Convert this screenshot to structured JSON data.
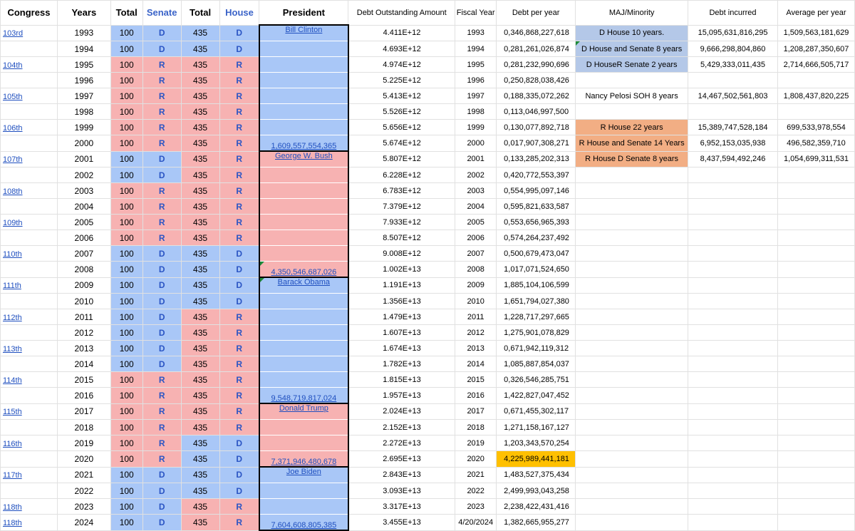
{
  "headers": {
    "congress": "Congress",
    "years": "Years",
    "total1": "Total",
    "senate": "Senate",
    "total2": "Total",
    "house": "House",
    "president": "President",
    "debt_outstanding": "Debt Outstanding Amount",
    "fiscal_year": "Fiscal Year",
    "debt_per_year": "Debt per year",
    "maj_minority": "MAJ/Minority",
    "debt_incurred": "Debt incurred",
    "avg_per_year": "Average per year"
  },
  "colors": {
    "democrat_fill": "#a9c7f7",
    "republican_fill": "#f7b2b2",
    "highlight_yellow": "#ffc000",
    "maj_blue": "#b4c8e8",
    "maj_orange": "#f2ae84"
  },
  "rows": [
    {
      "congress": "103rd",
      "year": "1993",
      "total_senate": "100",
      "senate": "D",
      "total_house": "435",
      "house": "D",
      "president": "Bill Clinton",
      "debt_outstanding": "4.411E+12",
      "fiscal_year": "1993",
      "debt_per_year": "0,346,868,227,618",
      "maj": "D House 10 years.",
      "debt_incurred": "15,095,631,816,295",
      "avg_per_year": "1,509,563,181,629"
    },
    {
      "congress": "",
      "year": "1994",
      "total_senate": "100",
      "senate": "D",
      "total_house": "435",
      "house": "D",
      "president": "",
      "debt_outstanding": "4.693E+12",
      "fiscal_year": "1994",
      "debt_per_year": "0,281,261,026,874",
      "maj": "D House and Senate 8 years",
      "debt_incurred": "9,666,298,804,860",
      "avg_per_year": "1,208,287,350,607"
    },
    {
      "congress": "104th",
      "year": "1995",
      "total_senate": "100",
      "senate": "R",
      "total_house": "435",
      "house": "R",
      "president": "",
      "debt_outstanding": "4.974E+12",
      "fiscal_year": "1995",
      "debt_per_year": "0,281,232,990,696",
      "maj": "D HouseR Senate 2 years",
      "debt_incurred": "5,429,333,011,435",
      "avg_per_year": "2,714,666,505,717"
    },
    {
      "congress": "",
      "year": "1996",
      "total_senate": "100",
      "senate": "R",
      "total_house": "435",
      "house": "R",
      "president": "",
      "debt_outstanding": "5.225E+12",
      "fiscal_year": "1996",
      "debt_per_year": "0,250,828,038,426",
      "maj": "",
      "debt_incurred": "",
      "avg_per_year": ""
    },
    {
      "congress": "105th",
      "year": "1997",
      "total_senate": "100",
      "senate": "R",
      "total_house": "435",
      "house": "R",
      "president": "",
      "debt_outstanding": "5.413E+12",
      "fiscal_year": "1997",
      "debt_per_year": "0,188,335,072,262",
      "maj": "Nancy Pelosi SOH 8 years",
      "debt_incurred": "14,467,502,561,803",
      "avg_per_year": "1,808,437,820,225"
    },
    {
      "congress": "",
      "year": "1998",
      "total_senate": "100",
      "senate": "R",
      "total_house": "435",
      "house": "R",
      "president": "",
      "debt_outstanding": "5.526E+12",
      "fiscal_year": "1998",
      "debt_per_year": "0,113,046,997,500",
      "maj": "",
      "debt_incurred": "",
      "avg_per_year": ""
    },
    {
      "congress": "106th",
      "year": "1999",
      "total_senate": "100",
      "senate": "R",
      "total_house": "435",
      "house": "R",
      "president": "",
      "debt_outstanding": "5.656E+12",
      "fiscal_year": "1999",
      "debt_per_year": "0,130,077,892,718",
      "maj": "R House 22 years",
      "debt_incurred": "15,389,747,528,184",
      "avg_per_year": "699,533,978,554"
    },
    {
      "congress": "",
      "year": "2000",
      "total_senate": "100",
      "senate": "R",
      "total_house": "435",
      "house": "R",
      "president": "1,609,557,554,365",
      "debt_outstanding": "5.674E+12",
      "fiscal_year": "2000",
      "debt_per_year": "0,017,907,308,271",
      "maj": "R House  and Senate 14 Years",
      "debt_incurred": "6,952,153,035,938",
      "avg_per_year": "496,582,359,710"
    },
    {
      "congress": "107th",
      "year": "2001",
      "total_senate": "100",
      "senate": "D",
      "total_house": "435",
      "house": "R",
      "president": "George W. Bush",
      "debt_outstanding": "5.807E+12",
      "fiscal_year": "2001",
      "debt_per_year": "0,133,285,202,313",
      "maj": "R House D Senate 8 years",
      "debt_incurred": "8,437,594,492,246",
      "avg_per_year": "1,054,699,311,531"
    },
    {
      "congress": "",
      "year": "2002",
      "total_senate": "100",
      "senate": "D",
      "total_house": "435",
      "house": "R",
      "president": "",
      "debt_outstanding": "6.228E+12",
      "fiscal_year": "2002",
      "debt_per_year": "0,420,772,553,397",
      "maj": "",
      "debt_incurred": "",
      "avg_per_year": ""
    },
    {
      "congress": "108th",
      "year": "2003",
      "total_senate": "100",
      "senate": "R",
      "total_house": "435",
      "house": "R",
      "president": "",
      "debt_outstanding": "6.783E+12",
      "fiscal_year": "2003",
      "debt_per_year": "0,554,995,097,146",
      "maj": "",
      "debt_incurred": "",
      "avg_per_year": ""
    },
    {
      "congress": "",
      "year": "2004",
      "total_senate": "100",
      "senate": "R",
      "total_house": "435",
      "house": "R",
      "president": "",
      "debt_outstanding": "7.379E+12",
      "fiscal_year": "2004",
      "debt_per_year": "0,595,821,633,587",
      "maj": "",
      "debt_incurred": "",
      "avg_per_year": ""
    },
    {
      "congress": "109th",
      "year": "2005",
      "total_senate": "100",
      "senate": "R",
      "total_house": "435",
      "house": "R",
      "president": "",
      "debt_outstanding": "7.933E+12",
      "fiscal_year": "2005",
      "debt_per_year": "0,553,656,965,393",
      "maj": "",
      "debt_incurred": "",
      "avg_per_year": ""
    },
    {
      "congress": "",
      "year": "2006",
      "total_senate": "100",
      "senate": "R",
      "total_house": "435",
      "house": "R",
      "president": "",
      "debt_outstanding": "8.507E+12",
      "fiscal_year": "2006",
      "debt_per_year": "0,574,264,237,492",
      "maj": "",
      "debt_incurred": "",
      "avg_per_year": ""
    },
    {
      "congress": "110th",
      "year": "2007",
      "total_senate": "100",
      "senate": "D",
      "total_house": "435",
      "house": "D",
      "president": "",
      "debt_outstanding": "9.008E+12",
      "fiscal_year": "2007",
      "debt_per_year": "0,500,679,473,047",
      "maj": "",
      "debt_incurred": "",
      "avg_per_year": ""
    },
    {
      "congress": "",
      "year": "2008",
      "total_senate": "100",
      "senate": "D",
      "total_house": "435",
      "house": "D",
      "president": "4,350,546,687,026",
      "debt_outstanding": "1.002E+13",
      "fiscal_year": "2008",
      "debt_per_year": "1,017,071,524,650",
      "maj": "",
      "debt_incurred": "",
      "avg_per_year": ""
    },
    {
      "congress": "111th",
      "year": "2009",
      "total_senate": "100",
      "senate": "D",
      "total_house": "435",
      "house": "D",
      "president": "Barack Obama",
      "debt_outstanding": "1.191E+13",
      "fiscal_year": "2009",
      "debt_per_year": "1,885,104,106,599",
      "maj": "",
      "debt_incurred": "",
      "avg_per_year": ""
    },
    {
      "congress": "",
      "year": "2010",
      "total_senate": "100",
      "senate": "D",
      "total_house": "435",
      "house": "D",
      "president": "",
      "debt_outstanding": "1.356E+13",
      "fiscal_year": "2010",
      "debt_per_year": "1,651,794,027,380",
      "maj": "",
      "debt_incurred": "",
      "avg_per_year": ""
    },
    {
      "congress": "112th",
      "year": "2011",
      "total_senate": "100",
      "senate": "D",
      "total_house": "435",
      "house": "R",
      "president": "",
      "debt_outstanding": "1.479E+13",
      "fiscal_year": "2011",
      "debt_per_year": "1,228,717,297,665",
      "maj": "",
      "debt_incurred": "",
      "avg_per_year": ""
    },
    {
      "congress": "",
      "year": "2012",
      "total_senate": "100",
      "senate": "D",
      "total_house": "435",
      "house": "R",
      "president": "",
      "debt_outstanding": "1.607E+13",
      "fiscal_year": "2012",
      "debt_per_year": "1,275,901,078,829",
      "maj": "",
      "debt_incurred": "",
      "avg_per_year": ""
    },
    {
      "congress": "113th",
      "year": "2013",
      "total_senate": "100",
      "senate": "D",
      "total_house": "435",
      "house": "R",
      "president": "",
      "debt_outstanding": "1.674E+13",
      "fiscal_year": "2013",
      "debt_per_year": "0,671,942,119,312",
      "maj": "",
      "debt_incurred": "",
      "avg_per_year": ""
    },
    {
      "congress": "",
      "year": "2014",
      "total_senate": "100",
      "senate": "D",
      "total_house": "435",
      "house": "R",
      "president": "",
      "debt_outstanding": "1.782E+13",
      "fiscal_year": "2014",
      "debt_per_year": "1,085,887,854,037",
      "maj": "",
      "debt_incurred": "",
      "avg_per_year": ""
    },
    {
      "congress": "114th",
      "year": "2015",
      "total_senate": "100",
      "senate": "R",
      "total_house": "435",
      "house": "R",
      "president": "",
      "debt_outstanding": "1.815E+13",
      "fiscal_year": "2015",
      "debt_per_year": "0,326,546,285,751",
      "maj": "",
      "debt_incurred": "",
      "avg_per_year": ""
    },
    {
      "congress": "",
      "year": "2016",
      "total_senate": "100",
      "senate": "R",
      "total_house": "435",
      "house": "R",
      "president": "9,548,719,817,024",
      "debt_outstanding": "1.957E+13",
      "fiscal_year": "2016",
      "debt_per_year": "1,422,827,047,452",
      "maj": "",
      "debt_incurred": "",
      "avg_per_year": ""
    },
    {
      "congress": "115th",
      "year": "2017",
      "total_senate": "100",
      "senate": "R",
      "total_house": "435",
      "house": "R",
      "president": "Donald Trump",
      "debt_outstanding": "2.024E+13",
      "fiscal_year": "2017",
      "debt_per_year": "0,671,455,302,117",
      "maj": "",
      "debt_incurred": "",
      "avg_per_year": ""
    },
    {
      "congress": "",
      "year": "2018",
      "total_senate": "100",
      "senate": "R",
      "total_house": "435",
      "house": "R",
      "president": "",
      "debt_outstanding": "2.152E+13",
      "fiscal_year": "2018",
      "debt_per_year": "1,271,158,167,127",
      "maj": "",
      "debt_incurred": "",
      "avg_per_year": ""
    },
    {
      "congress": "116th",
      "year": "2019",
      "total_senate": "100",
      "senate": "R",
      "total_house": "435",
      "house": "D",
      "president": "",
      "debt_outstanding": "2.272E+13",
      "fiscal_year": "2019",
      "debt_per_year": "1,203,343,570,254",
      "maj": "",
      "debt_incurred": "",
      "avg_per_year": ""
    },
    {
      "congress": "",
      "year": "2020",
      "total_senate": "100",
      "senate": "R",
      "total_house": "435",
      "house": "D",
      "president": "7,371,946,480,678",
      "debt_outstanding": "2.695E+13",
      "fiscal_year": "2020",
      "debt_per_year": "4,225,989,441,181",
      "maj": "",
      "debt_incurred": "",
      "avg_per_year": ""
    },
    {
      "congress": "117th",
      "year": "2021",
      "total_senate": "100",
      "senate": "D",
      "total_house": "435",
      "house": "D",
      "president": "Joe Biden",
      "debt_outstanding": "2.843E+13",
      "fiscal_year": "2021",
      "debt_per_year": "1,483,527,375,434",
      "maj": "",
      "debt_incurred": "",
      "avg_per_year": ""
    },
    {
      "congress": "",
      "year": "2022",
      "total_senate": "100",
      "senate": "D",
      "total_house": "435",
      "house": "D",
      "president": "",
      "debt_outstanding": "3.093E+13",
      "fiscal_year": "2022",
      "debt_per_year": "2,499,993,043,258",
      "maj": "",
      "debt_incurred": "",
      "avg_per_year": ""
    },
    {
      "congress": "118th",
      "year": "2023",
      "total_senate": "100",
      "senate": "D",
      "total_house": "435",
      "house": "R",
      "president": "",
      "debt_outstanding": "3.317E+13",
      "fiscal_year": "2023",
      "debt_per_year": "2,238,422,431,416",
      "maj": "",
      "debt_incurred": "",
      "avg_per_year": ""
    },
    {
      "congress": "118th",
      "year": "2024",
      "total_senate": "100",
      "senate": "D",
      "total_house": "435",
      "house": "R",
      "president": "7,604,608,805,385",
      "debt_outstanding": "3.455E+13",
      "fiscal_year": "4/20/2024",
      "debt_per_year": "1,382,665,955,277",
      "maj": "",
      "debt_incurred": "",
      "avg_per_year": ""
    }
  ]
}
